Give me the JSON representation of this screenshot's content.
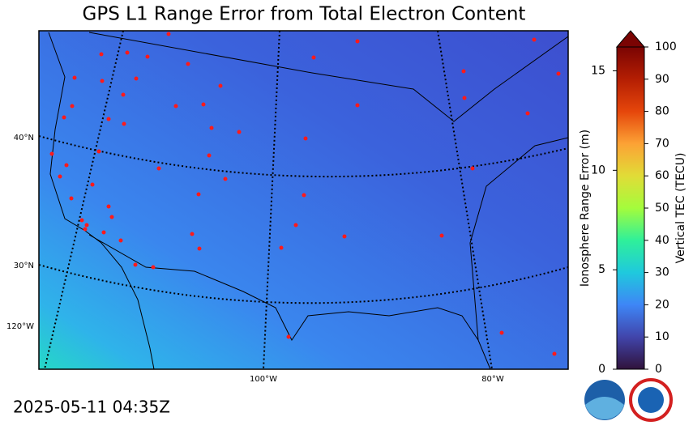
{
  "title": "GPS L1 Range Error from Total Electron Content",
  "timestamp": "2025-05-11 04:35Z",
  "graticule": {
    "latitudes": [
      "40°N",
      "30°N"
    ],
    "longitudes": [
      "120°W",
      "100°W",
      "80°W"
    ]
  },
  "colorbar": {
    "label": "Vertical TEC (TECU)",
    "lim": [
      0,
      100
    ],
    "ticks": [
      0,
      10,
      20,
      30,
      40,
      50,
      60,
      70,
      80,
      90,
      100
    ],
    "extend": "max",
    "range_error": {
      "label": "Ionosphere Range Error (m)",
      "lim": [
        0,
        16.2
      ],
      "ticks": [
        0,
        5,
        10,
        15
      ]
    }
  }
}
